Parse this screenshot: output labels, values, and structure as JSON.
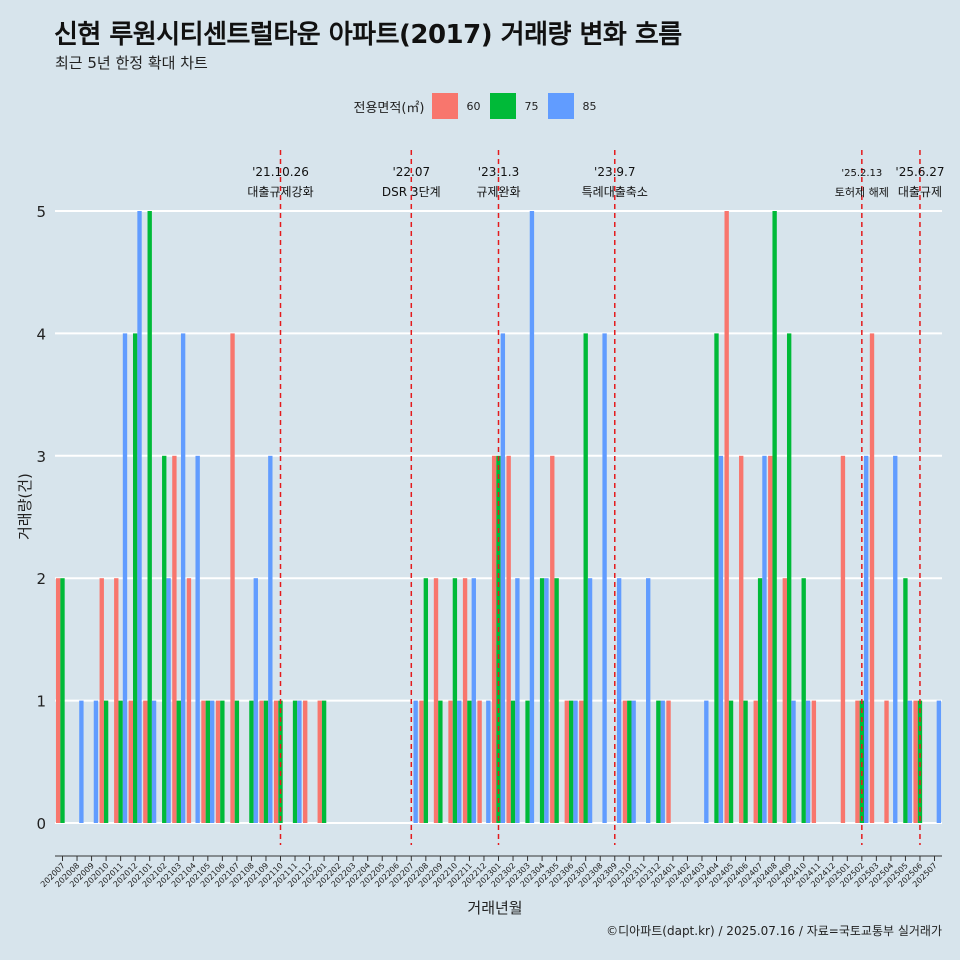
{
  "title": "신현 루원시티센트럴타운 아파트(2017) 거래량 변화 흐름",
  "subtitle": "최근 5년 한정 확대 차트",
  "caption": "©디아파트(dapt.kr) / 2025.07.16 / 자료=국토교통부 실거래가",
  "legend": {
    "title": "전용면적(㎡)",
    "items": [
      {
        "label": "60",
        "color": "#f8766d"
      },
      {
        "label": "75",
        "color": "#00ba38"
      },
      {
        "label": "85",
        "color": "#619cff"
      }
    ]
  },
  "chart_data": {
    "type": "bar",
    "title": "신현 루원시티센트럴타운 아파트(2017) 거래량 변화 흐름",
    "subtitle": "최근 5년 한정 확대 차트",
    "xlabel": "거래년월",
    "ylabel": "거래량(건)",
    "ylim": [
      0,
      5
    ],
    "yticks": [
      0,
      1,
      2,
      3,
      4,
      5
    ],
    "grid": true,
    "legend_position": "top",
    "categories": [
      "202007",
      "202008",
      "202009",
      "202010",
      "202011",
      "202012",
      "202101",
      "202102",
      "202103",
      "202104",
      "202105",
      "202106",
      "202107",
      "202108",
      "202109",
      "202110",
      "202111",
      "202112",
      "202201",
      "202202",
      "202203",
      "202204",
      "202205",
      "202206",
      "202207",
      "202208",
      "202209",
      "202210",
      "202211",
      "202212",
      "202301",
      "202302",
      "202303",
      "202304",
      "202305",
      "202306",
      "202307",
      "202308",
      "202309",
      "202310",
      "202311",
      "202312",
      "202401",
      "202402",
      "202403",
      "202404",
      "202405",
      "202406",
      "202407",
      "202408",
      "202409",
      "202410",
      "202411",
      "202412",
      "202501",
      "202502",
      "202503",
      "202504",
      "202505",
      "202506",
      "202507"
    ],
    "series": [
      {
        "name": "60",
        "color": "#f8766d",
        "values": [
          2,
          0,
          0,
          2,
          2,
          1,
          1,
          0,
          3,
          2,
          1,
          1,
          4,
          0,
          1,
          1,
          0,
          1,
          1,
          0,
          0,
          0,
          0,
          0,
          0,
          1,
          2,
          1,
          2,
          1,
          3,
          3,
          0,
          0,
          3,
          1,
          1,
          0,
          0,
          1,
          0,
          0,
          1,
          0,
          0,
          0,
          5,
          3,
          1,
          3,
          2,
          0,
          1,
          0,
          3,
          1,
          4,
          1,
          0,
          1,
          0
        ]
      },
      {
        "name": "75",
        "color": "#00ba38",
        "values": [
          2,
          0,
          0,
          1,
          1,
          4,
          5,
          3,
          1,
          0,
          1,
          1,
          1,
          1,
          1,
          1,
          1,
          0,
          1,
          0,
          0,
          0,
          0,
          0,
          0,
          2,
          1,
          2,
          1,
          0,
          3,
          1,
          1,
          2,
          2,
          1,
          4,
          0,
          0,
          1,
          0,
          1,
          0,
          0,
          0,
          4,
          1,
          1,
          2,
          5,
          4,
          2,
          0,
          0,
          0,
          1,
          0,
          0,
          2,
          1,
          0
        ]
      },
      {
        "name": "85",
        "color": "#619cff",
        "values": [
          0,
          1,
          1,
          0,
          4,
          5,
          1,
          2,
          4,
          3,
          1,
          0,
          0,
          2,
          3,
          0,
          1,
          0,
          0,
          0,
          0,
          0,
          0,
          0,
          1,
          0,
          0,
          1,
          2,
          1,
          4,
          2,
          5,
          2,
          0,
          1,
          2,
          4,
          2,
          1,
          2,
          1,
          0,
          0,
          1,
          3,
          0,
          0,
          3,
          0,
          1,
          1,
          0,
          0,
          0,
          3,
          0,
          3,
          1,
          0,
          1
        ]
      }
    ],
    "annotations": [
      {
        "x": "202110",
        "date": "'21.10.26",
        "label": "대출규제강화"
      },
      {
        "x": "202207",
        "date": "'22.07",
        "label": "DSR 3단계"
      },
      {
        "x": "202301",
        "date": "'23.1.3",
        "label": "규제완화"
      },
      {
        "x": "202309",
        "date": "'23.9.7",
        "label": "특례대출축소"
      },
      {
        "x": "202502",
        "date": "'25.2.13",
        "label": "토허제 해제"
      },
      {
        "x": "202506",
        "date": "'25.6.27",
        "label": "대출규제"
      }
    ]
  }
}
